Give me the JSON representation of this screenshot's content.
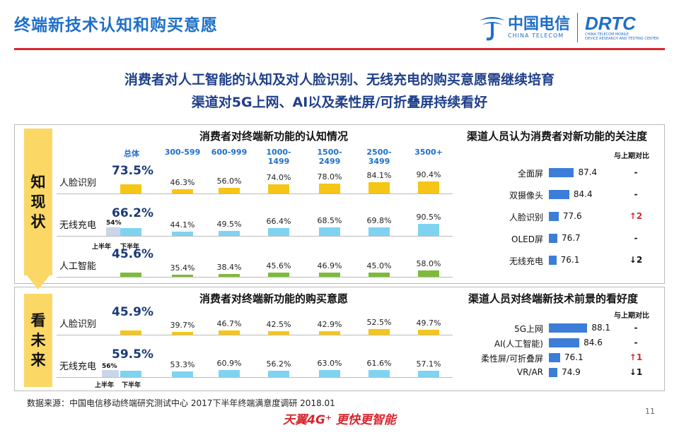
{
  "header": {
    "title": "终端新技术认知和购买意愿",
    "logo_ct_zh": "中国电信",
    "logo_ct_en": "CHINA TELECOM",
    "logo_drtc": "DRTC",
    "logo_drtc_sub1": "CHINA TELECOM MOBILE",
    "logo_drtc_sub2": "DEVICE RESEARCH AND TESTING CENTER"
  },
  "subtitle": {
    "line1": "消费者对人工智能的认知及对人脸识别、无线充电的购买意愿需继续培育",
    "line2": "渠道对5G上网、AI以及柔性屏/可折叠屏持续看好"
  },
  "side_labels": {
    "top": "知\n现\n状",
    "bottom": "看\n未\n来"
  },
  "colors": {
    "yellow": "#f5c518",
    "cyan": "#7fd3f0",
    "green": "#7dbb3a",
    "blue": "#3b7dd8",
    "red": "#d9262e",
    "title_blue": "#1e6fc8"
  },
  "columns": [
    "总体",
    "300-599",
    "600-999",
    "1000-1499",
    "1500-2499",
    "2500-3499",
    "3500+"
  ],
  "awareness": {
    "title": "消费者对终端新功能的认知情况",
    "rows": [
      {
        "label": "人脸识别",
        "total": "73.5%",
        "values": [
          46.3,
          56.0,
          74.0,
          78.0,
          84.1,
          90.4
        ],
        "texts": [
          "46.3%",
          "56.0%",
          "74.0%",
          "78.0%",
          "84.1%",
          "90.4%"
        ],
        "color": "#f5c518"
      },
      {
        "label": "无线充电",
        "total": "66.2%",
        "values": [
          44.1,
          49.5,
          66.4,
          68.5,
          69.8,
          90.5
        ],
        "texts": [
          "44.1%",
          "49.5%",
          "66.4%",
          "68.5%",
          "69.8%",
          "90.5%"
        ],
        "color": "#7fd3f0"
      },
      {
        "label": "人工智能",
        "total": "45.6%",
        "values": [
          35.4,
          38.4,
          45.6,
          46.9,
          45.0,
          58.0
        ],
        "texts": [
          "35.4%",
          "38.4%",
          "45.6%",
          "46.9%",
          "45.0%",
          "58.0%"
        ],
        "color": "#7dbb3a"
      }
    ],
    "half_year_first": "54%",
    "half_first_label": "上半年",
    "half_second_label": "下半年"
  },
  "purchase": {
    "title": "消费者对终端新功能的购买意愿",
    "rows": [
      {
        "label": "人脸识别",
        "total": "45.9%",
        "values": [
          39.7,
          46.7,
          42.5,
          42.9,
          52.5,
          49.7
        ],
        "texts": [
          "39.7%",
          "46.7%",
          "42.5%",
          "42.9%",
          "52.5%",
          "49.7%"
        ],
        "color": "#f5c518"
      },
      {
        "label": "无线充电",
        "total": "59.5%",
        "values": [
          53.3,
          60.9,
          56.2,
          63.0,
          61.6,
          57.1
        ],
        "texts": [
          "53.3%",
          "60.9%",
          "56.2%",
          "63.0%",
          "61.6%",
          "57.1%"
        ],
        "color": "#7fd3f0"
      }
    ],
    "half_year_first": "56%",
    "half_first_label": "上半年",
    "half_second_label": "下半年"
  },
  "channel_attention": {
    "title": "渠道人员认为消费者对新功能的关注度",
    "compare_header": "与上期对比",
    "items": [
      {
        "label": "全面屏",
        "value": 87.4,
        "text": "87.4",
        "compare": "-"
      },
      {
        "label": "双摄像头",
        "value": 84.4,
        "text": "84.4",
        "compare": "-"
      },
      {
        "label": "人脸识别",
        "value": 77.6,
        "text": "77.6",
        "compare": "↑2"
      },
      {
        "label": "OLED屏",
        "value": 76.7,
        "text": "76.7",
        "compare": "-"
      },
      {
        "label": "无线充电",
        "value": 76.1,
        "text": "76.1",
        "compare": "↓2"
      }
    ]
  },
  "channel_outlook": {
    "title": "渠道人员对终端新技术前景的看好度",
    "compare_header": "与上期对比",
    "items": [
      {
        "label": "5G上网",
        "value": 88.1,
        "text": "88.1",
        "compare": "-"
      },
      {
        "label": "AI(人工智能)",
        "value": 84.6,
        "text": "84.6",
        "compare": "-"
      },
      {
        "label": "柔性屏/可折叠屏",
        "value": 76.1,
        "text": "76.1",
        "compare": "↑1"
      },
      {
        "label": "VR/AR",
        "value": 74.9,
        "text": "74.9",
        "compare": "↓1"
      }
    ]
  },
  "footer": {
    "source": "数据来源：中国电信移动终端研究测试中心 2017下半年终端满意度调研 2018.01",
    "page_number": "11",
    "slogan": "天翼4G⁺ 更快更智能"
  }
}
